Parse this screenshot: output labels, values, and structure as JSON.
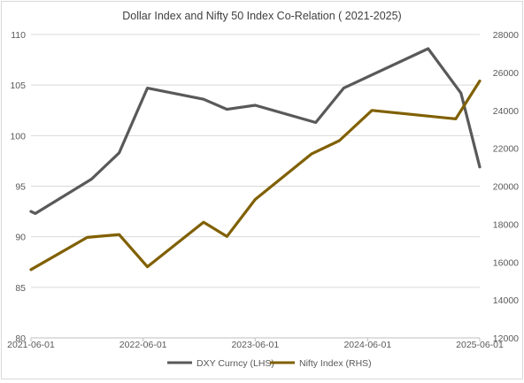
{
  "chart_data": {
    "type": "line",
    "title": "Dollar Index and Nifty 50 Index Co-Relation ( 2021-2025)",
    "x_ticks": [
      "2021-06-01",
      "2022-06-01",
      "2023-06-01",
      "2024-06-01",
      "2025-06-01"
    ],
    "y_left": {
      "ticks": [
        "80",
        "85",
        "90",
        "95",
        "100",
        "105",
        "110"
      ],
      "range": [
        80,
        110
      ]
    },
    "y_right": {
      "ticks": [
        "12000",
        "14000",
        "16000",
        "18000",
        "20000",
        "22000",
        "24000",
        "26000",
        "28000"
      ],
      "range": [
        12000,
        28000
      ]
    },
    "grid": "horizontal",
    "legend_position": "bottom",
    "series": [
      {
        "name": "DXY Curncy (LHS)",
        "axis": "left",
        "color": "#595959",
        "points": [
          [
            "2021-06-01",
            92.5
          ],
          [
            "2021-06-15",
            92.3
          ],
          [
            "2021-12-15",
            95.7
          ],
          [
            "2022-03-15",
            98.3
          ],
          [
            "2022-06-15",
            104.7
          ],
          [
            "2022-12-15",
            103.6
          ],
          [
            "2023-03-01",
            102.6
          ],
          [
            "2023-06-01",
            103.0
          ],
          [
            "2023-12-15",
            101.3
          ],
          [
            "2024-03-15",
            104.7
          ],
          [
            "2024-12-15",
            108.6
          ],
          [
            "2025-04-01",
            104.2
          ],
          [
            "2025-06-01",
            96.9
          ]
        ]
      },
      {
        "name": "Nifty Index (RHS)",
        "axis": "right",
        "color": "#806000",
        "points": [
          [
            "2021-06-01",
            15600
          ],
          [
            "2021-12-01",
            17300
          ],
          [
            "2022-03-15",
            17450
          ],
          [
            "2022-06-15",
            15750
          ],
          [
            "2022-12-15",
            18100
          ],
          [
            "2023-03-01",
            17350
          ],
          [
            "2023-06-01",
            19300
          ],
          [
            "2023-12-01",
            21700
          ],
          [
            "2024-03-01",
            22400
          ],
          [
            "2024-06-15",
            24000
          ],
          [
            "2025-03-15",
            23550
          ],
          [
            "2025-06-01",
            25550
          ]
        ]
      }
    ]
  }
}
